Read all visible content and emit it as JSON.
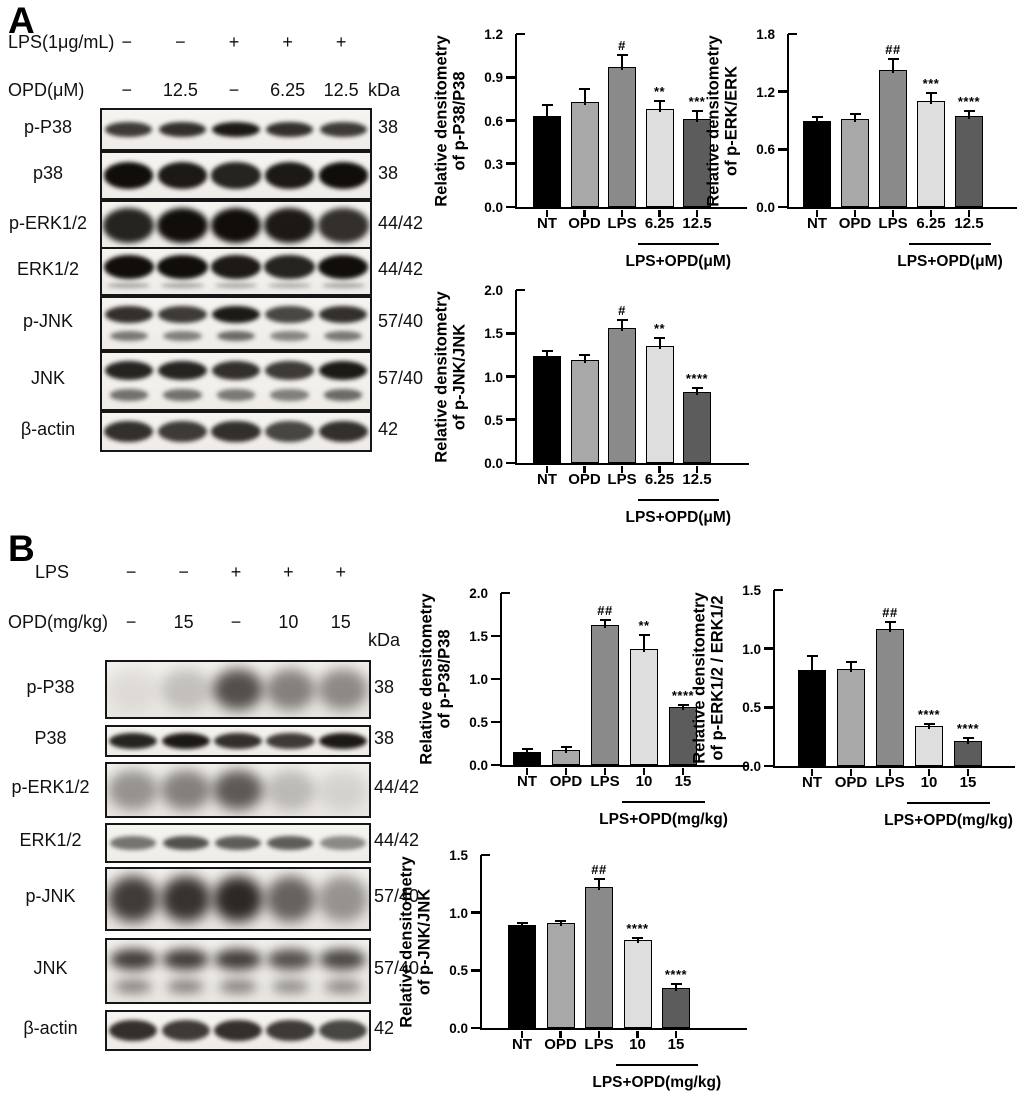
{
  "figure": {
    "panels": [
      {
        "letter": "A",
        "header_rows": [
          {
            "label": "LPS(1μg/mL)",
            "values": [
              "−",
              "−",
              "+",
              "+",
              "+"
            ]
          },
          {
            "label": "OPD(μM)",
            "values": [
              "−",
              "12.5",
              "−",
              "6.25",
              "12.5"
            ],
            "unit": "kDa"
          }
        ],
        "blots": [
          {
            "label": "p-P38",
            "kda": "38",
            "band": "single-thin",
            "style": "sharp",
            "lanes": [
              0.8,
              0.85,
              0.95,
              0.85,
              0.8
            ]
          },
          {
            "label": "p38",
            "kda": "38",
            "band": "single-thick",
            "style": "sharp",
            "lanes": [
              1,
              0.95,
              0.9,
              0.95,
              1
            ]
          },
          {
            "label": "p-ERK1/2",
            "kda": "44/42",
            "band": "blob",
            "style": "sharp",
            "lanes": [
              0.9,
              1,
              1,
              0.95,
              0.85
            ]
          },
          {
            "label": "ERK1/2",
            "kda": "44/42",
            "band": "thick-sub",
            "style": "sharp",
            "lanes": [
              1,
              1,
              0.95,
              0.9,
              1
            ]
          },
          {
            "label": "p-JNK",
            "kda": "57/40",
            "band": "double",
            "style": "sharp",
            "lanes": [
              0.85,
              0.8,
              0.95,
              0.75,
              0.85
            ]
          },
          {
            "label": "JNK",
            "kda": "57/40",
            "band": "double",
            "style": "sharp",
            "lanes": [
              0.9,
              0.9,
              0.85,
              0.8,
              0.95
            ]
          },
          {
            "label": "β-actin",
            "kda": "42",
            "band": "single-thick",
            "style": "sharp",
            "lanes": [
              0.85,
              0.8,
              0.85,
              0.75,
              0.85
            ]
          }
        ]
      },
      {
        "letter": "B",
        "header_rows": [
          {
            "label": "LPS",
            "values": [
              "−",
              "−",
              "+",
              "+",
              "+"
            ]
          },
          {
            "label": "OPD(mg/kg)",
            "values": [
              "−",
              "15",
              "−",
              "10",
              "15"
            ],
            "unit": "kDa"
          }
        ],
        "blots": [
          {
            "label": "p-P38",
            "kda": "38",
            "band": "blob",
            "style": "fuzzy",
            "lanes": [
              0.08,
              0.22,
              0.8,
              0.55,
              0.5
            ]
          },
          {
            "label": "P38",
            "kda": "38",
            "band": "single-thick",
            "style": "sharp",
            "lanes": [
              0.9,
              0.95,
              0.85,
              0.8,
              0.95
            ]
          },
          {
            "label": "p-ERK1/2",
            "kda": "44/42",
            "band": "blob",
            "style": "fuzzy",
            "lanes": [
              0.45,
              0.55,
              0.75,
              0.25,
              0.12
            ]
          },
          {
            "label": "ERK1/2",
            "kda": "44/42",
            "band": "single-thin",
            "style": "sharp",
            "lanes": [
              0.55,
              0.7,
              0.65,
              0.65,
              0.45
            ]
          },
          {
            "label": "p-JNK",
            "kda": "57/40",
            "band": "blob",
            "style": "fuzzy",
            "lanes": [
              0.9,
              0.95,
              1,
              0.7,
              0.45
            ]
          },
          {
            "label": "JNK",
            "kda": "57/40",
            "band": "double",
            "style": "fuzzy",
            "lanes": [
              0.9,
              0.9,
              0.9,
              0.8,
              0.85
            ]
          },
          {
            "label": "β-actin",
            "kda": "42",
            "band": "single-thick",
            "style": "sharp",
            "lanes": [
              0.85,
              0.8,
              0.85,
              0.8,
              0.75
            ]
          }
        ]
      }
    ]
  },
  "colors": {
    "bars": [
      "#000000",
      "#a8a8a8",
      "#8a8a8a",
      "#dedede",
      "#5c5c5c"
    ],
    "axis": "#000000"
  },
  "chart_data": [
    {
      "id": "a-p38",
      "type": "bar",
      "panel": "A",
      "ylabel_lines": [
        "Relative densitometry",
        "of p-P38/P38"
      ],
      "categories": [
        "NT",
        "OPD",
        "LPS",
        "6.25",
        "12.5"
      ],
      "values": [
        0.63,
        0.73,
        0.97,
        0.68,
        0.61
      ],
      "errors": [
        0.07,
        0.08,
        0.08,
        0.05,
        0.05
      ],
      "annotations": [
        "",
        "",
        "#",
        "**",
        "***"
      ],
      "ylim": [
        0,
        1.2
      ],
      "yticks": [
        0,
        0.3,
        0.6,
        0.9,
        1.2
      ],
      "group_label": "LPS+OPD(μM)",
      "group_span": [
        3,
        4
      ],
      "legend": "none",
      "grid": false
    },
    {
      "id": "a-erk",
      "type": "bar",
      "panel": "A",
      "ylabel_lines": [
        "Relative densitometry",
        "of p-ERK/ERK"
      ],
      "categories": [
        "NT",
        "OPD",
        "LPS",
        "6.25",
        "12.5"
      ],
      "values": [
        0.9,
        0.92,
        1.43,
        1.1,
        0.95
      ],
      "errors": [
        0.03,
        0.04,
        0.1,
        0.08,
        0.04
      ],
      "annotations": [
        "",
        "",
        "##",
        "***",
        "****"
      ],
      "ylim": [
        0,
        1.8
      ],
      "yticks": [
        0,
        0.6,
        1.2,
        1.8
      ],
      "group_label": "LPS+OPD(μM)",
      "group_span": [
        3,
        4
      ],
      "legend": "none",
      "grid": false
    },
    {
      "id": "a-jnk",
      "type": "bar",
      "panel": "A",
      "ylabel_lines": [
        "Relative densitometry",
        "of p-JNK/JNK"
      ],
      "categories": [
        "NT",
        "OPD",
        "LPS",
        "6.25",
        "12.5"
      ],
      "values": [
        1.24,
        1.19,
        1.56,
        1.35,
        0.82
      ],
      "errors": [
        0.04,
        0.05,
        0.08,
        0.08,
        0.04
      ],
      "annotations": [
        "",
        "",
        "#",
        "**",
        "****"
      ],
      "ylim": [
        0,
        2.0
      ],
      "yticks": [
        0,
        0.5,
        1.0,
        1.5,
        2.0
      ],
      "group_label": "LPS+OPD(μM)",
      "group_span": [
        3,
        4
      ],
      "legend": "none",
      "grid": false
    },
    {
      "id": "b-p38",
      "type": "bar",
      "panel": "B",
      "ylabel_lines": [
        "Relative densitometry",
        "of p-P38/P38"
      ],
      "categories": [
        "NT",
        "OPD",
        "LPS",
        "10",
        "15"
      ],
      "values": [
        0.15,
        0.18,
        1.63,
        1.35,
        0.67
      ],
      "errors": [
        0.02,
        0.02,
        0.04,
        0.15,
        0.02
      ],
      "annotations": [
        "",
        "",
        "##",
        "**",
        "****"
      ],
      "ylim": [
        0,
        2.0
      ],
      "yticks": [
        0,
        0.5,
        1.0,
        1.5,
        2.0
      ],
      "group_label": "LPS+OPD(mg/kg)",
      "group_span": [
        3,
        4
      ],
      "legend": "none",
      "grid": false
    },
    {
      "id": "b-erk",
      "type": "bar",
      "panel": "B",
      "ylabel_lines": [
        "Relative densitometry",
        "of p-ERK1/2 / ERK1/2"
      ],
      "categories": [
        "NT",
        "OPD",
        "LPS",
        "10",
        "15"
      ],
      "values": [
        0.82,
        0.83,
        1.17,
        0.34,
        0.21
      ],
      "errors": [
        0.11,
        0.05,
        0.05,
        0.01,
        0.02
      ],
      "annotations": [
        "",
        "",
        "##",
        "****",
        "****"
      ],
      "ylim": [
        0,
        1.5
      ],
      "yticks": [
        0,
        0.5,
        1.0,
        1.5
      ],
      "group_label": "LPS+OPD(mg/kg)",
      "group_span": [
        3,
        4
      ],
      "legend": "none",
      "grid": false
    },
    {
      "id": "b-jnk",
      "type": "bar",
      "panel": "B",
      "ylabel_lines": [
        "Relative densitometry",
        "of p-JNK/JNK"
      ],
      "categories": [
        "NT",
        "OPD",
        "LPS",
        "10",
        "15"
      ],
      "values": [
        0.89,
        0.91,
        1.22,
        0.76,
        0.35
      ],
      "errors": [
        0.01,
        0.01,
        0.06,
        0.01,
        0.02
      ],
      "annotations": [
        "",
        "",
        "##",
        "****",
        "****"
      ],
      "ylim": [
        0,
        1.5
      ],
      "yticks": [
        0,
        0.5,
        1.0,
        1.5
      ],
      "group_label": "LPS+OPD(mg/kg)",
      "group_span": [
        3,
        4
      ],
      "legend": "none",
      "grid": false
    }
  ]
}
